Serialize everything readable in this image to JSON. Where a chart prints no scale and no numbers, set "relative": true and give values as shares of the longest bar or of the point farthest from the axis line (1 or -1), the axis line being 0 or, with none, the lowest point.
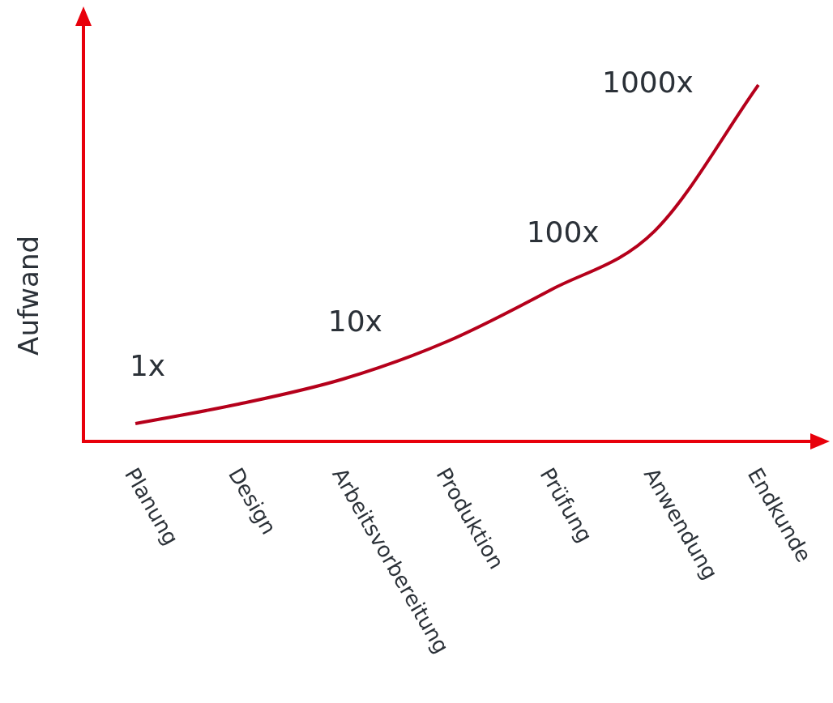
{
  "chart_data": {
    "type": "line",
    "relative": true,
    "ylabel": "Aufwand",
    "categories": [
      "Planung",
      "Design",
      "Arbeitsvorbereitung",
      "Produktion",
      "Prüfung",
      "Anwendung",
      "Endkunde"
    ],
    "series": [
      {
        "color": "#b5001b",
        "values": [
          0.05,
          0.105,
          0.175,
          0.28,
          0.425,
          0.59,
          1.0
        ]
      }
    ],
    "annotations": [
      "1x",
      "10x",
      "100x",
      "1000x"
    ],
    "grid": false,
    "legend": false,
    "marker": "none",
    "line_style": "solid"
  }
}
